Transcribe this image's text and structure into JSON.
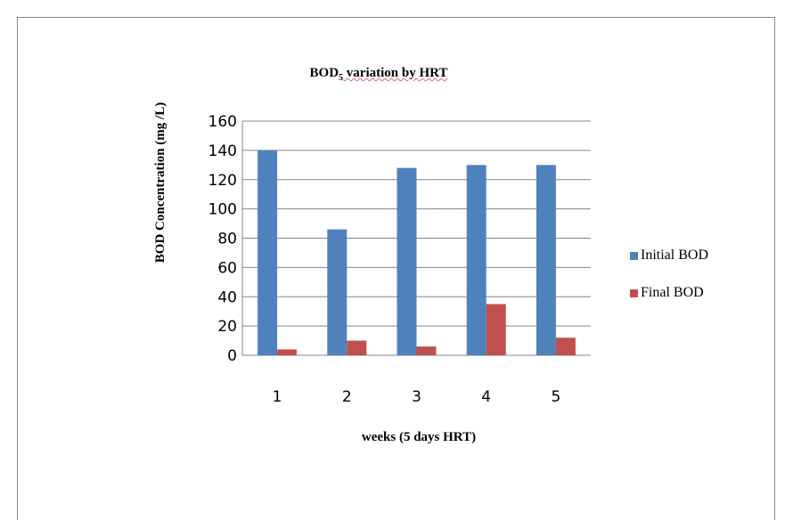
{
  "chart_data": {
    "type": "bar",
    "title_main": "BOD",
    "title_sub": "5",
    "title_rest": " variation by HRT",
    "xlabel": "weeks (5 days HRT)",
    "ylabel": "BOD Concentration (mg /L)",
    "categories": [
      "1",
      "2",
      "3",
      "4",
      "5"
    ],
    "ylim": [
      0,
      160
    ],
    "yticks": [
      "0",
      "20",
      "40",
      "60",
      "80",
      "100",
      "120",
      "140",
      "160"
    ],
    "grid": true,
    "legend_position": "right",
    "series": [
      {
        "name": "Initial BOD",
        "color": "#4f81bd",
        "values": [
          140,
          86,
          128,
          130,
          130
        ]
      },
      {
        "name": "Final BOD",
        "color": "#c0504d",
        "values": [
          4,
          10,
          6,
          35,
          12
        ]
      }
    ]
  }
}
